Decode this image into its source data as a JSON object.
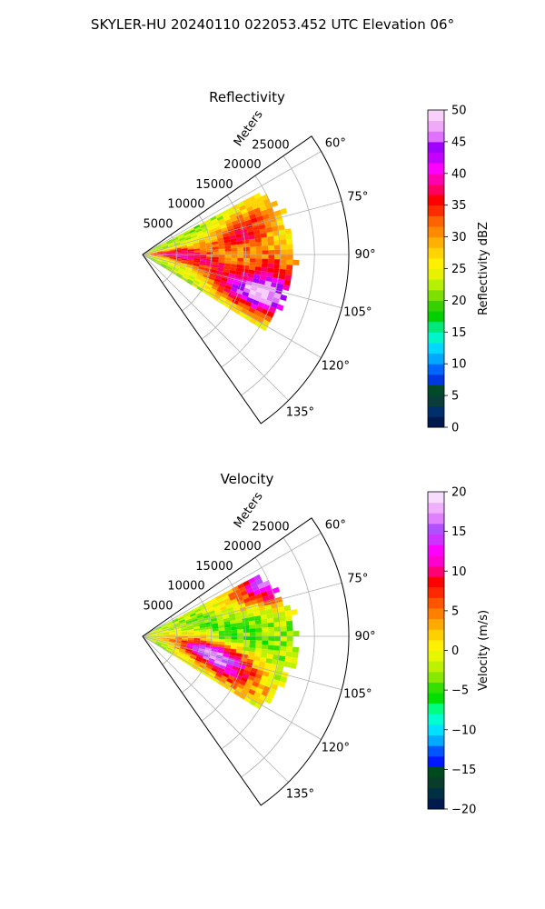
{
  "figure": {
    "suptitle": "SKYLER-HU  20240110  022053.452 UTC Elevation 06°"
  },
  "chart_data": [
    {
      "type": "heatmap",
      "projection": "polar-sector",
      "title": "Reflectivity",
      "radial_label": "Meters",
      "radial_ticks": [
        5000,
        10000,
        15000,
        20000,
        25000
      ],
      "radial_tick_labels": [
        "5000",
        "10000",
        "15000",
        "20000",
        "25000"
      ],
      "r_max": 30000,
      "theta_range_deg": [
        55,
        145
      ],
      "theta_ticks": [
        60,
        75,
        90,
        105,
        120,
        135
      ],
      "theta_tick_labels": [
        "60°",
        "75°",
        "90°",
        "105°",
        "120°",
        "135°"
      ],
      "grid": true,
      "colorbar": {
        "label": "Reflectivity dBZ",
        "range": [
          0,
          50
        ],
        "ticks": [
          0,
          5,
          10,
          15,
          20,
          25,
          30,
          35,
          40,
          45,
          50
        ],
        "tick_labels": [
          "0",
          "5",
          "10",
          "15",
          "20",
          "25",
          "30",
          "35",
          "40",
          "45",
          "50"
        ]
      },
      "data_extent": {
        "theta_deg": [
          62,
          122
        ],
        "r_max_m": 22000
      },
      "field": {
        "base_value": 22,
        "blobs": [
          {
            "theta_deg": 80,
            "r_m": 14000,
            "value": 34
          },
          {
            "theta_deg": 98,
            "r_m": 9000,
            "value": 34
          },
          {
            "theta_deg": 110,
            "r_m": 15000,
            "value": 37
          },
          {
            "theta_deg": 108,
            "r_m": 20000,
            "value": 41
          },
          {
            "theta_deg": 95,
            "r_m": 19000,
            "value": 32
          },
          {
            "theta_deg": 72,
            "r_m": 18000,
            "value": 30
          },
          {
            "theta_deg": 88,
            "r_m": 4000,
            "value": 38
          }
        ]
      }
    },
    {
      "type": "heatmap",
      "projection": "polar-sector",
      "title": "Velocity",
      "radial_label": "Meters",
      "radial_ticks": [
        5000,
        10000,
        15000,
        20000,
        25000
      ],
      "radial_tick_labels": [
        "5000",
        "10000",
        "15000",
        "20000",
        "25000"
      ],
      "r_max": 30000,
      "theta_range_deg": [
        55,
        145
      ],
      "theta_ticks": [
        60,
        75,
        90,
        105,
        120,
        135
      ],
      "theta_tick_labels": [
        "60°",
        "75°",
        "90°",
        "105°",
        "120°",
        "135°"
      ],
      "grid": true,
      "colorbar": {
        "label": "Velocity (m/s)",
        "range": [
          -20,
          20
        ],
        "ticks": [
          -20,
          -15,
          -10,
          -5,
          0,
          5,
          10,
          15,
          20
        ],
        "tick_labels": [
          "−20",
          "−15",
          "−10",
          "−5",
          "0",
          "5",
          "10",
          "15",
          "20"
        ]
      },
      "data_extent": {
        "theta_deg": [
          62,
          122
        ],
        "r_max_m": 22000
      },
      "field": {
        "base_value": -2,
        "blobs": [
          {
            "theta_deg": 68,
            "r_m": 18000,
            "value": 5
          },
          {
            "theta_deg": 64,
            "r_m": 21000,
            "value": 12
          },
          {
            "theta_deg": 80,
            "r_m": 12000,
            "value": -4
          },
          {
            "theta_deg": 96,
            "r_m": 12000,
            "value": -11
          },
          {
            "theta_deg": 100,
            "r_m": 10000,
            "value": 15
          },
          {
            "theta_deg": 108,
            "r_m": 12000,
            "value": 10
          },
          {
            "theta_deg": 115,
            "r_m": 16000,
            "value": 3
          },
          {
            "theta_deg": 90,
            "r_m": 5000,
            "value": 2
          }
        ]
      }
    }
  ]
}
